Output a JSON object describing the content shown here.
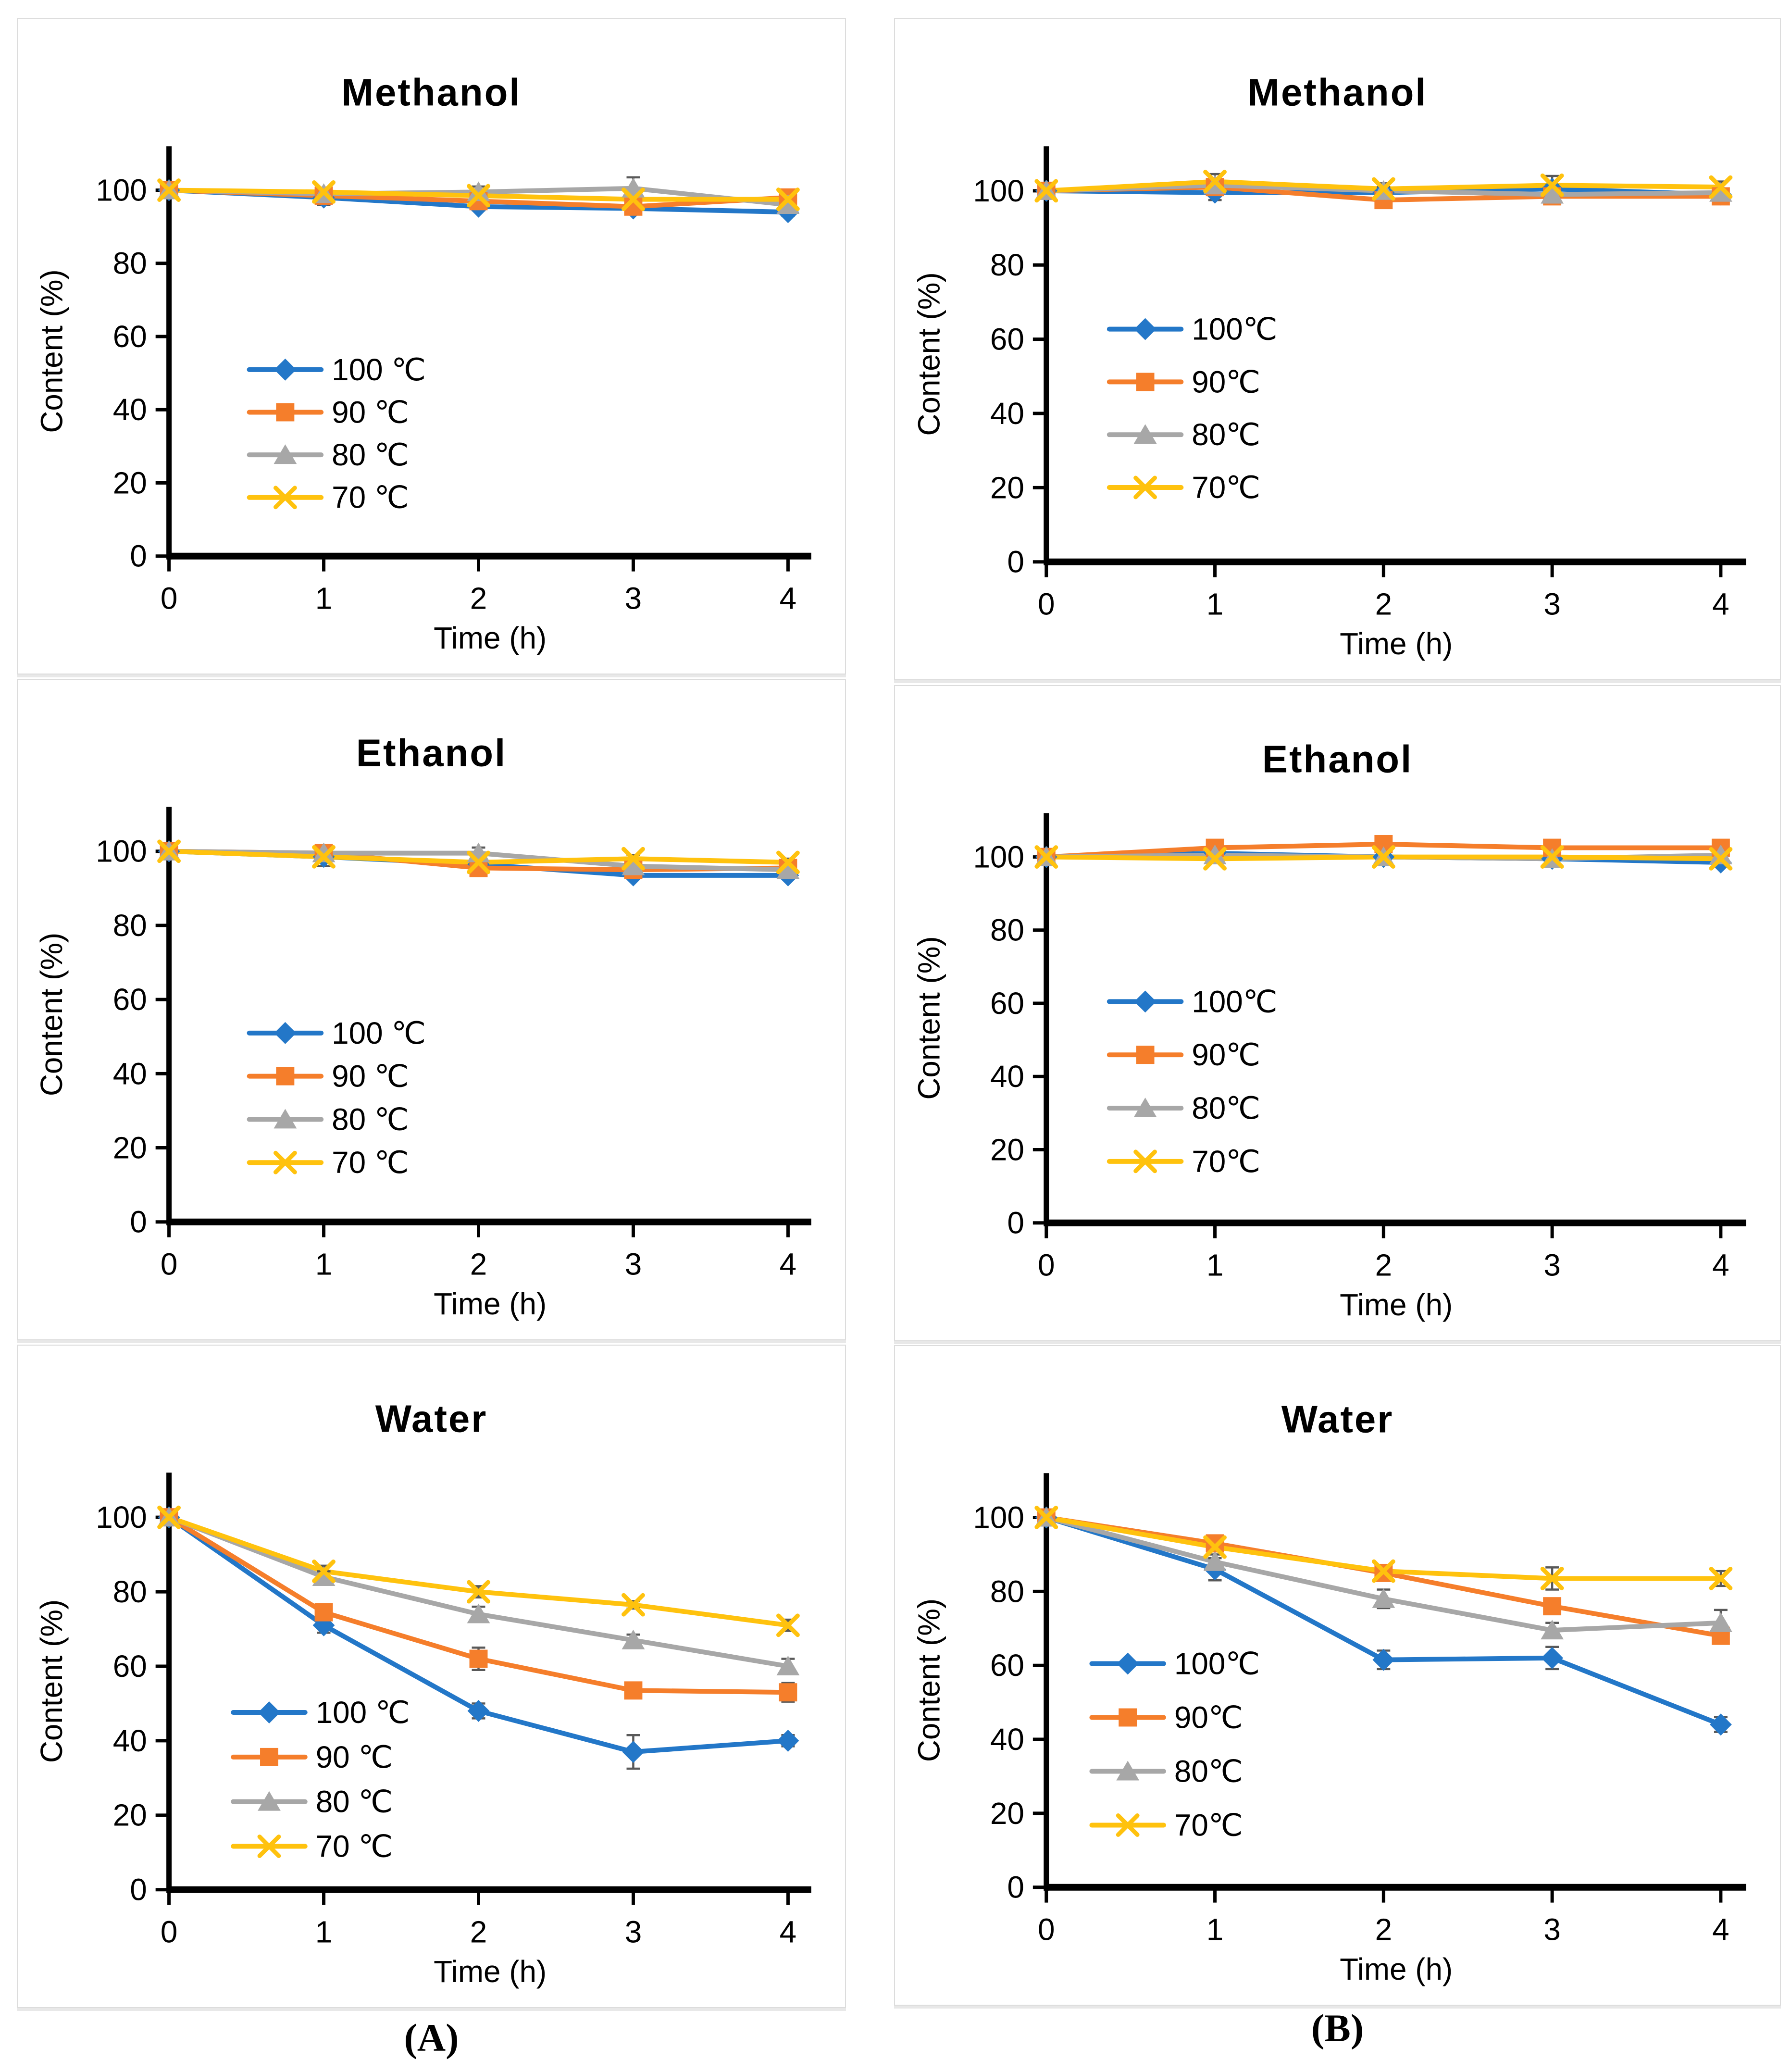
{
  "captions": {
    "a": "(A)",
    "b": "(B)"
  },
  "colors": {
    "series_100c": "#2377C8",
    "series_90c": "#F57E2B",
    "series_80c": "#A7A7A7",
    "series_70c": "#FFC20E",
    "error_bar": "#595959",
    "axis": "#000000"
  },
  "chart_data": [
    {
      "id": "methanol-a",
      "type": "line",
      "title": "Methanol",
      "xlabel": "Time (h)",
      "ylabel": "Content (%)",
      "x": [
        0,
        1,
        2,
        3,
        4
      ],
      "xlim": [
        0,
        4.15
      ],
      "ylim": [
        0,
        112
      ],
      "yticks": [
        0,
        20,
        40,
        60,
        80,
        100
      ],
      "xticks": [
        0,
        1,
        2,
        3,
        4
      ],
      "grid": false,
      "legend_position": "inside-left-middle",
      "legend": {
        "x": 0.125,
        "y": 0.545,
        "dy": 0.104
      },
      "series": [
        {
          "name": "100 ℃",
          "marker": "diamond",
          "color": "#2377C8",
          "values": [
            100,
            98,
            95.5,
            95,
            94
          ],
          "err": [
            1,
            2,
            1,
            0.5,
            1
          ]
        },
        {
          "name": "90 ℃",
          "marker": "square",
          "color": "#F57E2B",
          "values": [
            100,
            98.5,
            97,
            95.5,
            98
          ],
          "err": [
            1,
            1,
            1,
            1,
            1
          ]
        },
        {
          "name": "80 ℃",
          "marker": "triangle",
          "color": "#A7A7A7",
          "values": [
            100,
            99,
            99.5,
            100.5,
            96
          ],
          "err": [
            1,
            1,
            1.5,
            3,
            1.5
          ]
        },
        {
          "name": "70 ℃",
          "marker": "x",
          "color": "#FFC20E",
          "values": [
            100,
            99.5,
            98.5,
            97.5,
            97.5
          ],
          "err": [
            1,
            1,
            1,
            1,
            1
          ]
        }
      ]
    },
    {
      "id": "methanol-b",
      "type": "line",
      "title": "Methanol",
      "xlabel": "Time (h)",
      "ylabel": "Content (%)",
      "x": [
        0,
        1,
        2,
        3,
        4
      ],
      "xlim": [
        0,
        4.15
      ],
      "ylim": [
        0,
        112
      ],
      "yticks": [
        0,
        20,
        40,
        60,
        80,
        100
      ],
      "xticks": [
        0,
        1,
        2,
        3,
        4
      ],
      "grid": false,
      "legend_position": "inside-left-middle",
      "legend": {
        "x": 0.09,
        "y": 0.44,
        "dy": 0.127
      },
      "series": [
        {
          "name": "100℃",
          "marker": "diamond",
          "color": "#2377C8",
          "values": [
            100,
            99.5,
            99.5,
            100.5,
            99
          ],
          "err": [
            1,
            2,
            1,
            1,
            1
          ]
        },
        {
          "name": "90℃",
          "marker": "square",
          "color": "#F57E2B",
          "values": [
            100,
            101,
            97.5,
            98.5,
            98.5
          ],
          "err": [
            1,
            1,
            1,
            1,
            1
          ]
        },
        {
          "name": "80℃",
          "marker": "triangle",
          "color": "#A7A7A7",
          "values": [
            100,
            101.5,
            100,
            99,
            99.5
          ],
          "err": [
            1,
            1.5,
            1,
            1,
            1
          ]
        },
        {
          "name": "70℃",
          "marker": "x",
          "color": "#FFC20E",
          "values": [
            100,
            102.5,
            100.5,
            101.5,
            101
          ],
          "err": [
            1,
            2,
            1.5,
            2.5,
            1.5
          ]
        }
      ]
    },
    {
      "id": "ethanol-a",
      "type": "line",
      "title": "Ethanol",
      "xlabel": "Time (h)",
      "ylabel": "Content (%)",
      "x": [
        0,
        1,
        2,
        3,
        4
      ],
      "xlim": [
        0,
        4.15
      ],
      "ylim": [
        0,
        112
      ],
      "yticks": [
        0,
        20,
        40,
        60,
        80,
        100
      ],
      "xticks": [
        0,
        1,
        2,
        3,
        4
      ],
      "grid": false,
      "legend_position": "inside-left-middle",
      "legend": {
        "x": 0.125,
        "y": 0.545,
        "dy": 0.104
      },
      "series": [
        {
          "name": "100 ℃",
          "marker": "diamond",
          "color": "#2377C8",
          "values": [
            100,
            98.5,
            96.5,
            93.5,
            93.5
          ],
          "err": [
            1,
            2.5,
            1,
            1,
            1
          ]
        },
        {
          "name": "90 ℃",
          "marker": "square",
          "color": "#F57E2B",
          "values": [
            100,
            99.5,
            95.5,
            95,
            95.5
          ],
          "err": [
            1,
            1.5,
            1,
            1,
            1
          ]
        },
        {
          "name": "80 ℃",
          "marker": "triangle",
          "color": "#A7A7A7",
          "values": [
            100,
            99.5,
            99.5,
            96,
            95
          ],
          "err": [
            1,
            1.5,
            1.5,
            1,
            1
          ]
        },
        {
          "name": "70 ℃",
          "marker": "x",
          "color": "#FFC20E",
          "values": [
            100,
            98.5,
            97,
            98,
            97
          ],
          "err": [
            1,
            1,
            1,
            1,
            1
          ]
        }
      ]
    },
    {
      "id": "ethanol-b",
      "type": "line",
      "title": "Ethanol",
      "xlabel": "Time (h)",
      "ylabel": "Content (%)",
      "x": [
        0,
        1,
        2,
        3,
        4
      ],
      "xlim": [
        0,
        4.15
      ],
      "ylim": [
        0,
        112
      ],
      "yticks": [
        0,
        20,
        40,
        60,
        80,
        100
      ],
      "xticks": [
        0,
        1,
        2,
        3,
        4
      ],
      "grid": false,
      "legend_position": "inside-left-middle",
      "legend": {
        "x": 0.09,
        "y": 0.46,
        "dy": 0.13
      },
      "series": [
        {
          "name": "100℃",
          "marker": "diamond",
          "color": "#2377C8",
          "values": [
            100,
            101,
            100,
            99.5,
            98.5
          ],
          "err": [
            0.5,
            1,
            0.5,
            0.5,
            1
          ]
        },
        {
          "name": "90℃",
          "marker": "square",
          "color": "#F57E2B",
          "values": [
            100,
            102.5,
            103.5,
            102.5,
            102.5
          ],
          "err": [
            0.5,
            0.5,
            0.5,
            0.5,
            0.5
          ]
        },
        {
          "name": "80℃",
          "marker": "triangle",
          "color": "#A7A7A7",
          "values": [
            100,
            100.5,
            100,
            99.5,
            100.5
          ],
          "err": [
            0.5,
            1,
            1,
            0.5,
            1
          ]
        },
        {
          "name": "70℃",
          "marker": "x",
          "color": "#FFC20E",
          "values": [
            100,
            99.5,
            100,
            100,
            99.5
          ],
          "err": [
            0.5,
            0.5,
            0.5,
            0.5,
            0.5
          ]
        }
      ]
    },
    {
      "id": "water-a",
      "type": "line",
      "title": "Water",
      "xlabel": "Time (h)",
      "ylabel": "Content (%)",
      "x": [
        0,
        1,
        2,
        3,
        4
      ],
      "xlim": [
        0,
        4.15
      ],
      "ylim": [
        0,
        112
      ],
      "yticks": [
        0,
        20,
        40,
        60,
        80,
        100
      ],
      "xticks": [
        0,
        1,
        2,
        3,
        4
      ],
      "grid": false,
      "legend_position": "inside-left-middle",
      "legend": {
        "x": 0.1,
        "y": 0.575,
        "dy": 0.107
      },
      "series": [
        {
          "name": "100 ℃",
          "marker": "diamond",
          "color": "#2377C8",
          "values": [
            100,
            71,
            48,
            37,
            40
          ],
          "err": [
            0.5,
            2,
            2,
            4.5,
            1.5
          ]
        },
        {
          "name": "90 ℃",
          "marker": "square",
          "color": "#F57E2B",
          "values": [
            100,
            74.5,
            62,
            53.5,
            53
          ],
          "err": [
            0.5,
            1.5,
            3,
            2,
            2.5
          ]
        },
        {
          "name": "80 ℃",
          "marker": "triangle",
          "color": "#A7A7A7",
          "values": [
            100,
            84,
            74,
            67,
            60
          ],
          "err": [
            0.5,
            1.5,
            2,
            1.5,
            2
          ]
        },
        {
          "name": "70 ℃",
          "marker": "x",
          "color": "#FFC20E",
          "values": [
            100,
            85.5,
            80,
            76.5,
            71
          ],
          "err": [
            0.5,
            1.5,
            1.5,
            1,
            1.5
          ]
        }
      ]
    },
    {
      "id": "water-b",
      "type": "line",
      "title": "Water",
      "xlabel": "Time (h)",
      "ylabel": "Content (%)",
      "x": [
        0,
        1,
        2,
        3,
        4
      ],
      "xlim": [
        0,
        4.15
      ],
      "ylim": [
        0,
        112
      ],
      "yticks": [
        0,
        20,
        40,
        60,
        80,
        100
      ],
      "xticks": [
        0,
        1,
        2,
        3,
        4
      ],
      "grid": false,
      "legend_position": "inside-left-middle",
      "legend": {
        "x": 0.065,
        "y": 0.46,
        "dy": 0.13
      },
      "series": [
        {
          "name": "100℃",
          "marker": "diamond",
          "color": "#2377C8",
          "values": [
            100,
            86,
            61.5,
            62,
            44
          ],
          "err": [
            0.5,
            3,
            2.5,
            3,
            2
          ]
        },
        {
          "name": "90℃",
          "marker": "square",
          "color": "#F57E2B",
          "values": [
            100,
            93,
            85,
            76,
            68
          ],
          "err": [
            0.5,
            1.5,
            2,
            1.5,
            1.5
          ]
        },
        {
          "name": "80℃",
          "marker": "triangle",
          "color": "#A7A7A7",
          "values": [
            100,
            88,
            78,
            69.5,
            71.5
          ],
          "err": [
            0.5,
            2,
            2.5,
            2,
            3.5
          ]
        },
        {
          "name": "70℃",
          "marker": "x",
          "color": "#FFC20E",
          "values": [
            100,
            92,
            85.5,
            83.5,
            83.5
          ],
          "err": [
            0.5,
            1,
            1.5,
            3,
            2
          ]
        }
      ]
    }
  ]
}
